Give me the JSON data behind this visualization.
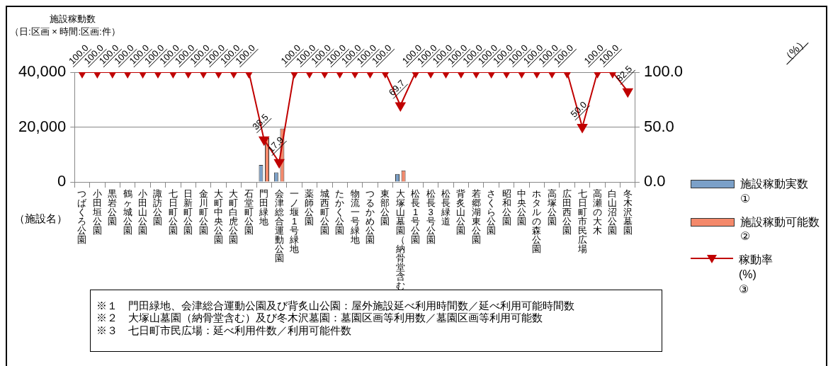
{
  "chart_data": {
    "type": "bar",
    "ylabel": "施設稼動数",
    "xlabel": "（施設名）",
    "categories": [
      "つばくろ公園",
      "小田垣公園",
      "黒岩公園",
      "鶴ヶ城公園",
      "小田山公園",
      "諏訪公園",
      "七日町公園",
      "日新町公園",
      "金川町公園",
      "大町中央公園",
      "大町白虎公園",
      "石堂町公園",
      "門田緑地",
      "会津総合運動公園",
      "一ノ堰1号緑地",
      "薬師公園",
      "城西町公園",
      "たかく公園",
      "物流一号緑地",
      "つるかめ公園",
      "東部公園",
      "大塚山墓園（納骨堂含む）",
      "松長1号公園",
      "松長3号公園",
      "松長緑道",
      "背炙山公園",
      "若郷湖東公園",
      "さくら公園",
      "昭和公園",
      "中央公園",
      "ホタルの森公園",
      "高塚公園",
      "広田西公園",
      "七日町市民広場",
      "高瀬の大木",
      "白山沼公園",
      "冬木沢墓園"
    ],
    "series": [
      {
        "name": "施設稼動実数\n①",
        "color": "#7ba0c8",
        "values": [
          0,
          0,
          0,
          0,
          0,
          0,
          0,
          0,
          0,
          0,
          0,
          0,
          6200,
          3500,
          0,
          0,
          0,
          0,
          0,
          0,
          0,
          2900,
          0,
          0,
          0,
          0,
          0,
          0,
          0,
          0,
          0,
          0,
          0,
          0,
          0,
          0,
          0
        ]
      },
      {
        "name": "施設稼動可能数\n②",
        "color": "#f4896b",
        "values": [
          0,
          0,
          0,
          0,
          0,
          0,
          0,
          0,
          0,
          0,
          0,
          0,
          16000,
          19500,
          0,
          0,
          0,
          0,
          0,
          0,
          0,
          4200,
          0,
          0,
          0,
          0,
          0,
          0,
          0,
          0,
          0,
          0,
          0,
          null,
          0,
          0,
          0
        ]
      },
      {
        "name": "稼動率\n(%)\n③",
        "type": "line",
        "axis": "y2",
        "color": "#c00000",
        "values": [
          100,
          100,
          100,
          100,
          100,
          100,
          100,
          100,
          100,
          100,
          100,
          100,
          38.5,
          17.9,
          100,
          100,
          100,
          100,
          100,
          100,
          100,
          69.7,
          100,
          100,
          100,
          100,
          100,
          100,
          100,
          100,
          100,
          100,
          100,
          50.0,
          100,
          100,
          82.5
        ],
        "value_labels": [
          "100.0",
          "100.0",
          "100.0",
          "100.0",
          "100.0",
          "100.0",
          "100.0",
          "100.0",
          "100.0",
          "100.0",
          "100.0",
          "100.0",
          "38.5",
          "17.9",
          "100.0",
          "100.0",
          "100.0",
          "100.0",
          "100.0",
          "100.0",
          "100.0",
          "69.7",
          "100.0",
          "100.0",
          "100.0",
          "100.0",
          "100.0",
          "100.0",
          "100.0",
          "100.0",
          "100.0",
          "100.0",
          "100.0",
          "50.0",
          "100.0",
          "100.0",
          "82.5"
        ]
      }
    ],
    "ylim": [
      0,
      40000
    ],
    "yticks": [
      0,
      {
        "value": 20000,
        "label": "20,000"
      },
      {
        "value": 40000,
        "label": "40,000"
      }
    ],
    "y2lim": [
      0,
      100
    ],
    "y2ticks": [
      {
        "value": 0,
        "label": "0.0"
      },
      {
        "value": 50,
        "label": "50.0"
      },
      {
        "value": 100,
        "label": "100.0"
      }
    ],
    "grid": "y",
    "legend": "right",
    "marker": "triangle",
    "line_style": "solid",
    "annotations": [
      "（日:区画 × 時間:区画:件）",
      "（%）",
      "※１　門田緑地、会津総合運動公園及び背炙山公園：屋外施設延べ利用時間数／延べ利用可能時間数",
      "※２　大塚山墓園（納骨堂含む）及び冬木沢墓園：墓園区画等利用数／墓園区画等利用可能数",
      "※３　七日町市民広場：延べ利用件数／利用可能件数"
    ]
  }
}
